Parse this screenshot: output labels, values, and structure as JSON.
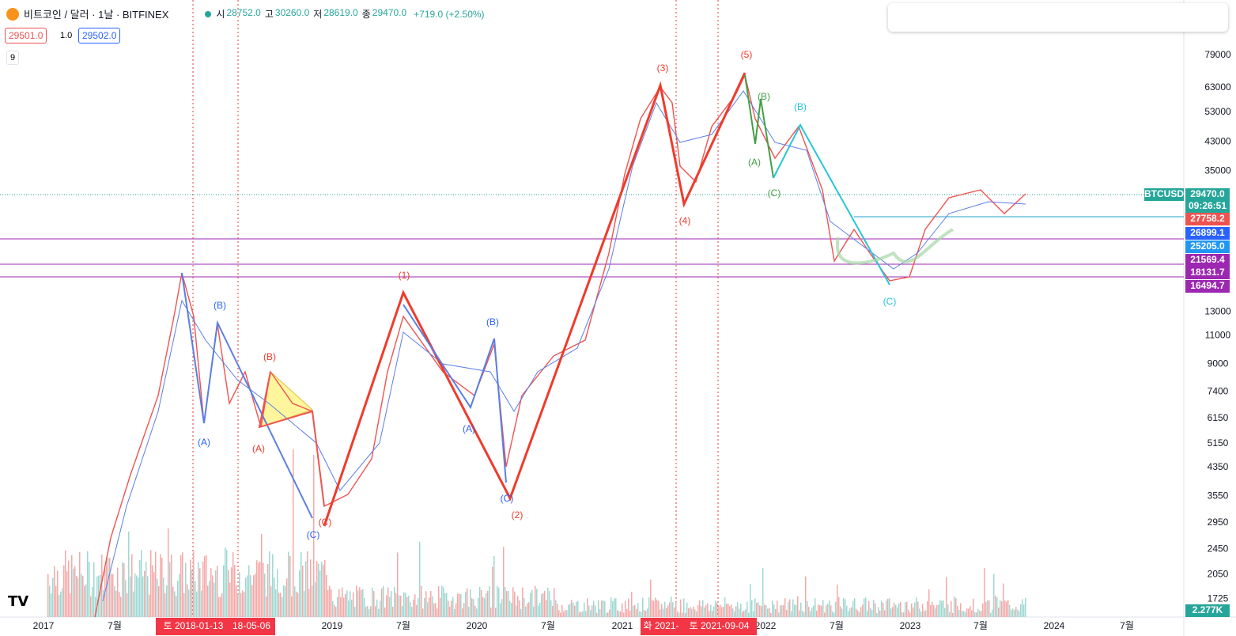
{
  "header": {
    "symbol": "비트코인 / 달러 · 1날 · BITFINEX",
    "ohlc": [
      {
        "key": "시",
        "value": "28752.0"
      },
      {
        "key": "고",
        "value": "30260.0"
      },
      {
        "key": "저",
        "value": "28619.0"
      },
      {
        "key": "종",
        "value": "29470.0"
      }
    ],
    "change": "+719.0 (+2.50%)",
    "bid": "29501.0",
    "spread": "1.0",
    "ask": "29502.0",
    "indicator": "9"
  },
  "price_scale": [
    79000,
    63000,
    53000,
    43000,
    35000,
    13000,
    11000,
    9000,
    7400,
    6150,
    5150,
    4350,
    3550,
    2950,
    2450,
    2050,
    1725
  ],
  "price_tags": [
    {
      "label": "BTCUSD"
    },
    {
      "label": "29470.0"
    },
    {
      "label": "09:26:51"
    },
    {
      "label": "27758.2"
    },
    {
      "label": "26899.1"
    },
    {
      "label": "25205.0"
    },
    {
      "label": "21569.4"
    },
    {
      "label": "18131.7"
    },
    {
      "label": "16494.7"
    },
    {
      "label": "2.277K"
    }
  ],
  "time_axis": [
    "2017",
    "7월",
    "2019",
    "7월",
    "2020",
    "7월",
    "2021",
    "2022",
    "7월",
    "2023",
    "7월",
    "2024",
    "7월"
  ],
  "date_tags": [
    "토 2018-01-13",
    "18-05-06",
    "화 2021-",
    "토 2021-09-04"
  ],
  "wave_labels": [
    "(B)",
    "(A)",
    "(B)",
    "(A)",
    "(C)",
    "(C)",
    "(1)",
    "(B)",
    "(A)",
    "(C)",
    "(2)",
    "(3)",
    "(4)",
    "(5)",
    "(B)",
    "(A)",
    "(C)",
    "(B)",
    "(C)"
  ]
}
